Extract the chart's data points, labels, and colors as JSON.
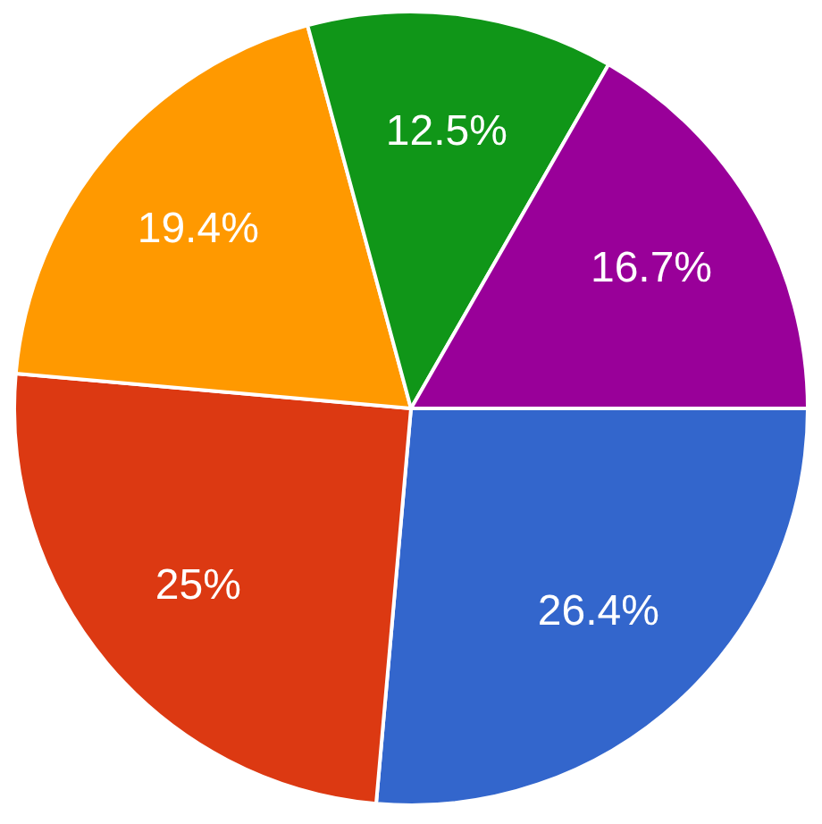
{
  "chart_data": {
    "type": "pie",
    "categories": [
      null,
      null,
      null,
      null,
      null
    ],
    "values": [
      26.4,
      25,
      19.4,
      12.5,
      16.7
    ],
    "colors": [
      "#3366cc",
      "#dc3912",
      "#ff9900",
      "#109618",
      "#990099"
    ],
    "value_labels": [
      "26.4%",
      "25%",
      "19.4%",
      "12.5%",
      "16.7%"
    ]
  }
}
